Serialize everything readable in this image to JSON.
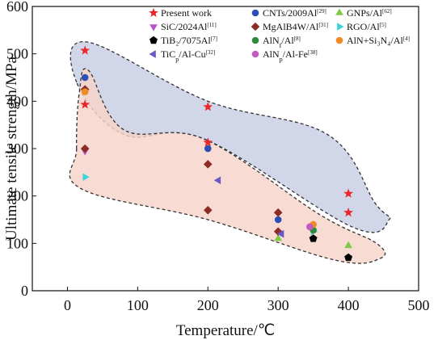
{
  "chart_data": {
    "type": "scatter",
    "xlabel": "Temperature/℃",
    "ylabel": "Ultimate tensile strength/MPa",
    "xlim": [
      -50,
      500
    ],
    "ylim": [
      0,
      600
    ],
    "xticks": [
      0,
      100,
      200,
      300,
      400,
      500
    ],
    "yticks": [
      0,
      100,
      200,
      300,
      400,
      500,
      600
    ],
    "grid": false,
    "legend_placement": "top",
    "regions": [
      {
        "color": "#c7cde3",
        "points": [
          [
            13,
            440
          ],
          [
            28,
            525
          ],
          [
            200,
            400
          ],
          [
            370,
            330
          ],
          [
            438,
            185
          ],
          [
            458,
            150
          ],
          [
            405,
            135
          ],
          [
            195,
            320
          ],
          [
            80,
            330
          ],
          [
            13,
            440
          ]
        ]
      },
      {
        "color": "#f6d4c9",
        "points": [
          [
            13,
            300
          ],
          [
            17,
            420
          ],
          [
            30,
            465
          ],
          [
            80,
            340
          ],
          [
            195,
            320
          ],
          [
            360,
            160
          ],
          [
            440,
            100
          ],
          [
            445,
            68
          ],
          [
            380,
            65
          ],
          [
            200,
            150
          ],
          [
            20,
            215
          ],
          [
            13,
            300
          ]
        ]
      }
    ],
    "series": [
      {
        "name": "Present work",
        "marker": "star",
        "color": "#e8262b",
        "points": [
          [
            25,
            507
          ],
          [
            25,
            393
          ],
          [
            200,
            388
          ],
          [
            200,
            313
          ],
          [
            400,
            205
          ],
          [
            400,
            165
          ]
        ]
      },
      {
        "name": "CNTs/2009Al",
        "sup": "[29]",
        "marker": "circle",
        "color": "#2b4fb5",
        "points": [
          [
            25,
            450
          ],
          [
            200,
            300
          ],
          [
            300,
            150
          ]
        ]
      },
      {
        "name": "GNPs/Al",
        "sup": "[62]",
        "marker": "triangle-up",
        "color": "#7fcb47",
        "points": [
          [
            300,
            110
          ],
          [
            400,
            95
          ]
        ]
      },
      {
        "name": "SiC/2024Al",
        "sup": "[11]",
        "marker": "triangle-down",
        "color": "#b655c6",
        "points": [
          [
            25,
            295
          ]
        ]
      },
      {
        "name": "MgAlB4W/Al",
        "sup": "[31]",
        "marker": "diamond",
        "color": "#8b2d24",
        "points": [
          [
            25,
            425
          ],
          [
            25,
            300
          ],
          [
            200,
            267
          ],
          [
            200,
            170
          ],
          [
            300,
            165
          ],
          [
            300,
            125
          ]
        ]
      },
      {
        "name": "RGO/Al",
        "sup": "[5]",
        "marker": "triangle-right",
        "color": "#3fd3d8",
        "points": [
          [
            25,
            240
          ],
          [
            350,
            125
          ]
        ]
      },
      {
        "name": "TiB₂/7075Al",
        "sup": "[7]",
        "marker": "pentagon",
        "color": "#000000",
        "points": [
          [
            350,
            110
          ],
          [
            400,
            70
          ]
        ]
      },
      {
        "name": "AlN",
        "sub": "f",
        "rest": "/Al",
        "sup": "[8]",
        "marker": "circle",
        "color": "#2e8b3e",
        "points": [
          [
            350,
            128
          ]
        ]
      },
      {
        "name": "AlN+Si₃N₄/Al",
        "sup": "[4]",
        "marker": "circle",
        "color": "#f08a24",
        "points": [
          [
            25,
            420
          ],
          [
            350,
            140
          ]
        ]
      },
      {
        "name": "TiC",
        "sub": "p",
        "rest": "/Al-Cu",
        "sup": "[32]",
        "marker": "triangle-left",
        "color": "#6a5bc4",
        "points": [
          [
            215,
            233
          ],
          [
            305,
            120
          ]
        ]
      },
      {
        "name": "AlN",
        "sub": "p",
        "rest": "/Al-Fe",
        "sup": "[38]",
        "marker": "circle",
        "color": "#c35bc0",
        "points": [
          [
            345,
            135
          ]
        ]
      }
    ]
  }
}
